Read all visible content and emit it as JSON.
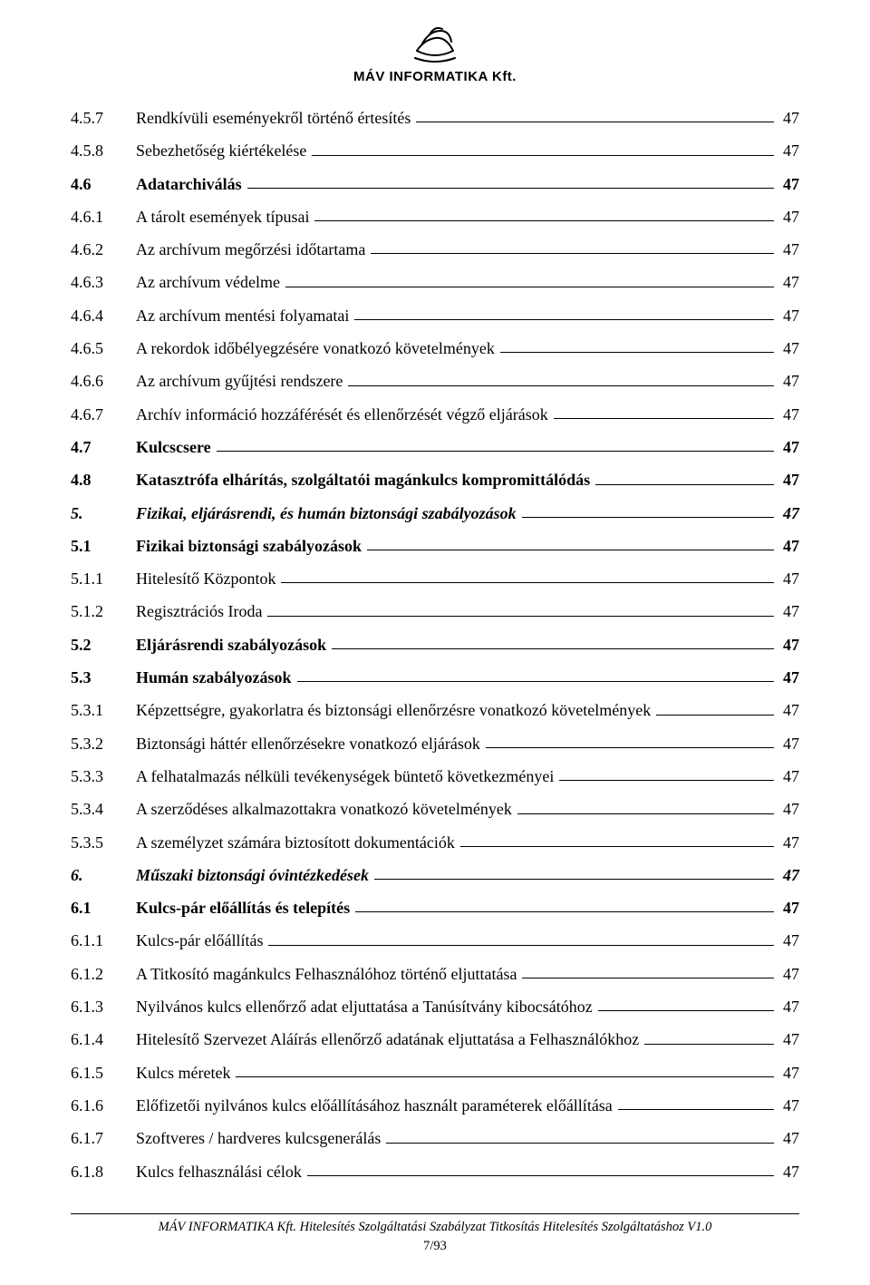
{
  "header": {
    "company_name": "MÁV INFORMATIKA Kft.",
    "logo_stroke": "#000000"
  },
  "toc": {
    "entries": [
      {
        "num": "4.5.7",
        "title": "Rendkívüli eseményekről történő értesítés",
        "page": "47",
        "style": ""
      },
      {
        "num": "4.5.8",
        "title": "Sebezhetőség kiértékelése",
        "page": "47",
        "style": ""
      },
      {
        "num": "4.6",
        "title": "Adatarchiválás",
        "page": "47",
        "style": "bold"
      },
      {
        "num": "4.6.1",
        "title": "A tárolt események típusai",
        "page": "47",
        "style": ""
      },
      {
        "num": "4.6.2",
        "title": "Az archívum megőrzési időtartama",
        "page": "47",
        "style": ""
      },
      {
        "num": "4.6.3",
        "title": "Az archívum védelme",
        "page": "47",
        "style": ""
      },
      {
        "num": "4.6.4",
        "title": "Az archívum mentési folyamatai",
        "page": "47",
        "style": ""
      },
      {
        "num": "4.6.5",
        "title": "A rekordok időbélyegzésére vonatkozó követelmények",
        "page": "47",
        "style": ""
      },
      {
        "num": "4.6.6",
        "title": "Az archívum gyűjtési rendszere",
        "page": "47",
        "style": ""
      },
      {
        "num": "4.6.7",
        "title": "Archív információ hozzáférését és ellenőrzését végző eljárások",
        "page": "47",
        "style": ""
      },
      {
        "num": "4.7",
        "title": "Kulcscsere",
        "page": "47",
        "style": "bold"
      },
      {
        "num": "4.8",
        "title": "Katasztrófa elhárítás, szolgáltatói magánkulcs kompromittálódás",
        "page": "47",
        "style": "bold"
      },
      {
        "num": "5.",
        "title": "Fizikai, eljárásrendi, és humán biztonsági szabályozások",
        "page": "47",
        "style": "bold italic"
      },
      {
        "num": "5.1",
        "title": "Fizikai biztonsági szabályozások",
        "page": "47",
        "style": "bold"
      },
      {
        "num": "5.1.1",
        "title": "Hitelesítő Központok",
        "page": "47",
        "style": ""
      },
      {
        "num": "5.1.2",
        "title": "Regisztrációs Iroda",
        "page": "47",
        "style": ""
      },
      {
        "num": "5.2",
        "title": "Eljárásrendi szabályozások",
        "page": "47",
        "style": "bold"
      },
      {
        "num": "5.3",
        "title": "Humán szabályozások",
        "page": "47",
        "style": "bold"
      },
      {
        "num": "5.3.1",
        "title": "Képzettségre, gyakorlatra és biztonsági ellenőrzésre vonatkozó követelmények",
        "page": "47",
        "style": "wrap"
      },
      {
        "num": "5.3.2",
        "title": "Biztonsági háttér ellenőrzésekre vonatkozó eljárások",
        "page": "47",
        "style": ""
      },
      {
        "num": "5.3.3",
        "title": "A felhatalmazás nélküli tevékenységek büntető következményei",
        "page": "47",
        "style": ""
      },
      {
        "num": "5.3.4",
        "title": "A szerződéses alkalmazottakra vonatkozó követelmények",
        "page": "47",
        "style": ""
      },
      {
        "num": "5.3.5",
        "title": "A személyzet számára biztosított dokumentációk",
        "page": "47",
        "style": ""
      },
      {
        "num": "6.",
        "title": "Műszaki biztonsági óvintézkedések",
        "page": "47",
        "style": "bold italic"
      },
      {
        "num": "6.1",
        "title": "Kulcs-pár előállítás és telepítés",
        "page": "47",
        "style": "bold"
      },
      {
        "num": "6.1.1",
        "title": "Kulcs-pár előállítás",
        "page": "47",
        "style": ""
      },
      {
        "num": "6.1.2",
        "title": "A Titkosító magánkulcs Felhasználóhoz történő eljuttatása",
        "page": "47",
        "style": ""
      },
      {
        "num": "6.1.3",
        "title": "Nyilvános kulcs ellenőrző adat eljuttatása a Tanúsítvány kibocsátóhoz",
        "page": "47",
        "style": ""
      },
      {
        "num": "6.1.4",
        "title": "Hitelesítő Szervezet Aláírás ellenőrző adatának eljuttatása a Felhasználókhoz",
        "page": "47",
        "style": "wrap"
      },
      {
        "num": "6.1.5",
        "title": "Kulcs méretek",
        "page": "47",
        "style": ""
      },
      {
        "num": "6.1.6",
        "title": "Előfizetői nyilvános kulcs előállításához használt paraméterek előállítása",
        "page": "47",
        "style": "wrap"
      },
      {
        "num": "6.1.7",
        "title": "Szoftveres / hardveres kulcsgenerálás",
        "page": "47",
        "style": ""
      },
      {
        "num": "6.1.8",
        "title": "Kulcs felhasználási célok",
        "page": "47",
        "style": ""
      }
    ]
  },
  "footer": {
    "text": "MÁV INFORMATIKA Kft. Hitelesítés Szolgáltatási Szabályzat Titkosítás Hitelesítés Szolgáltatáshoz V1.0",
    "page_num": "7/93"
  }
}
